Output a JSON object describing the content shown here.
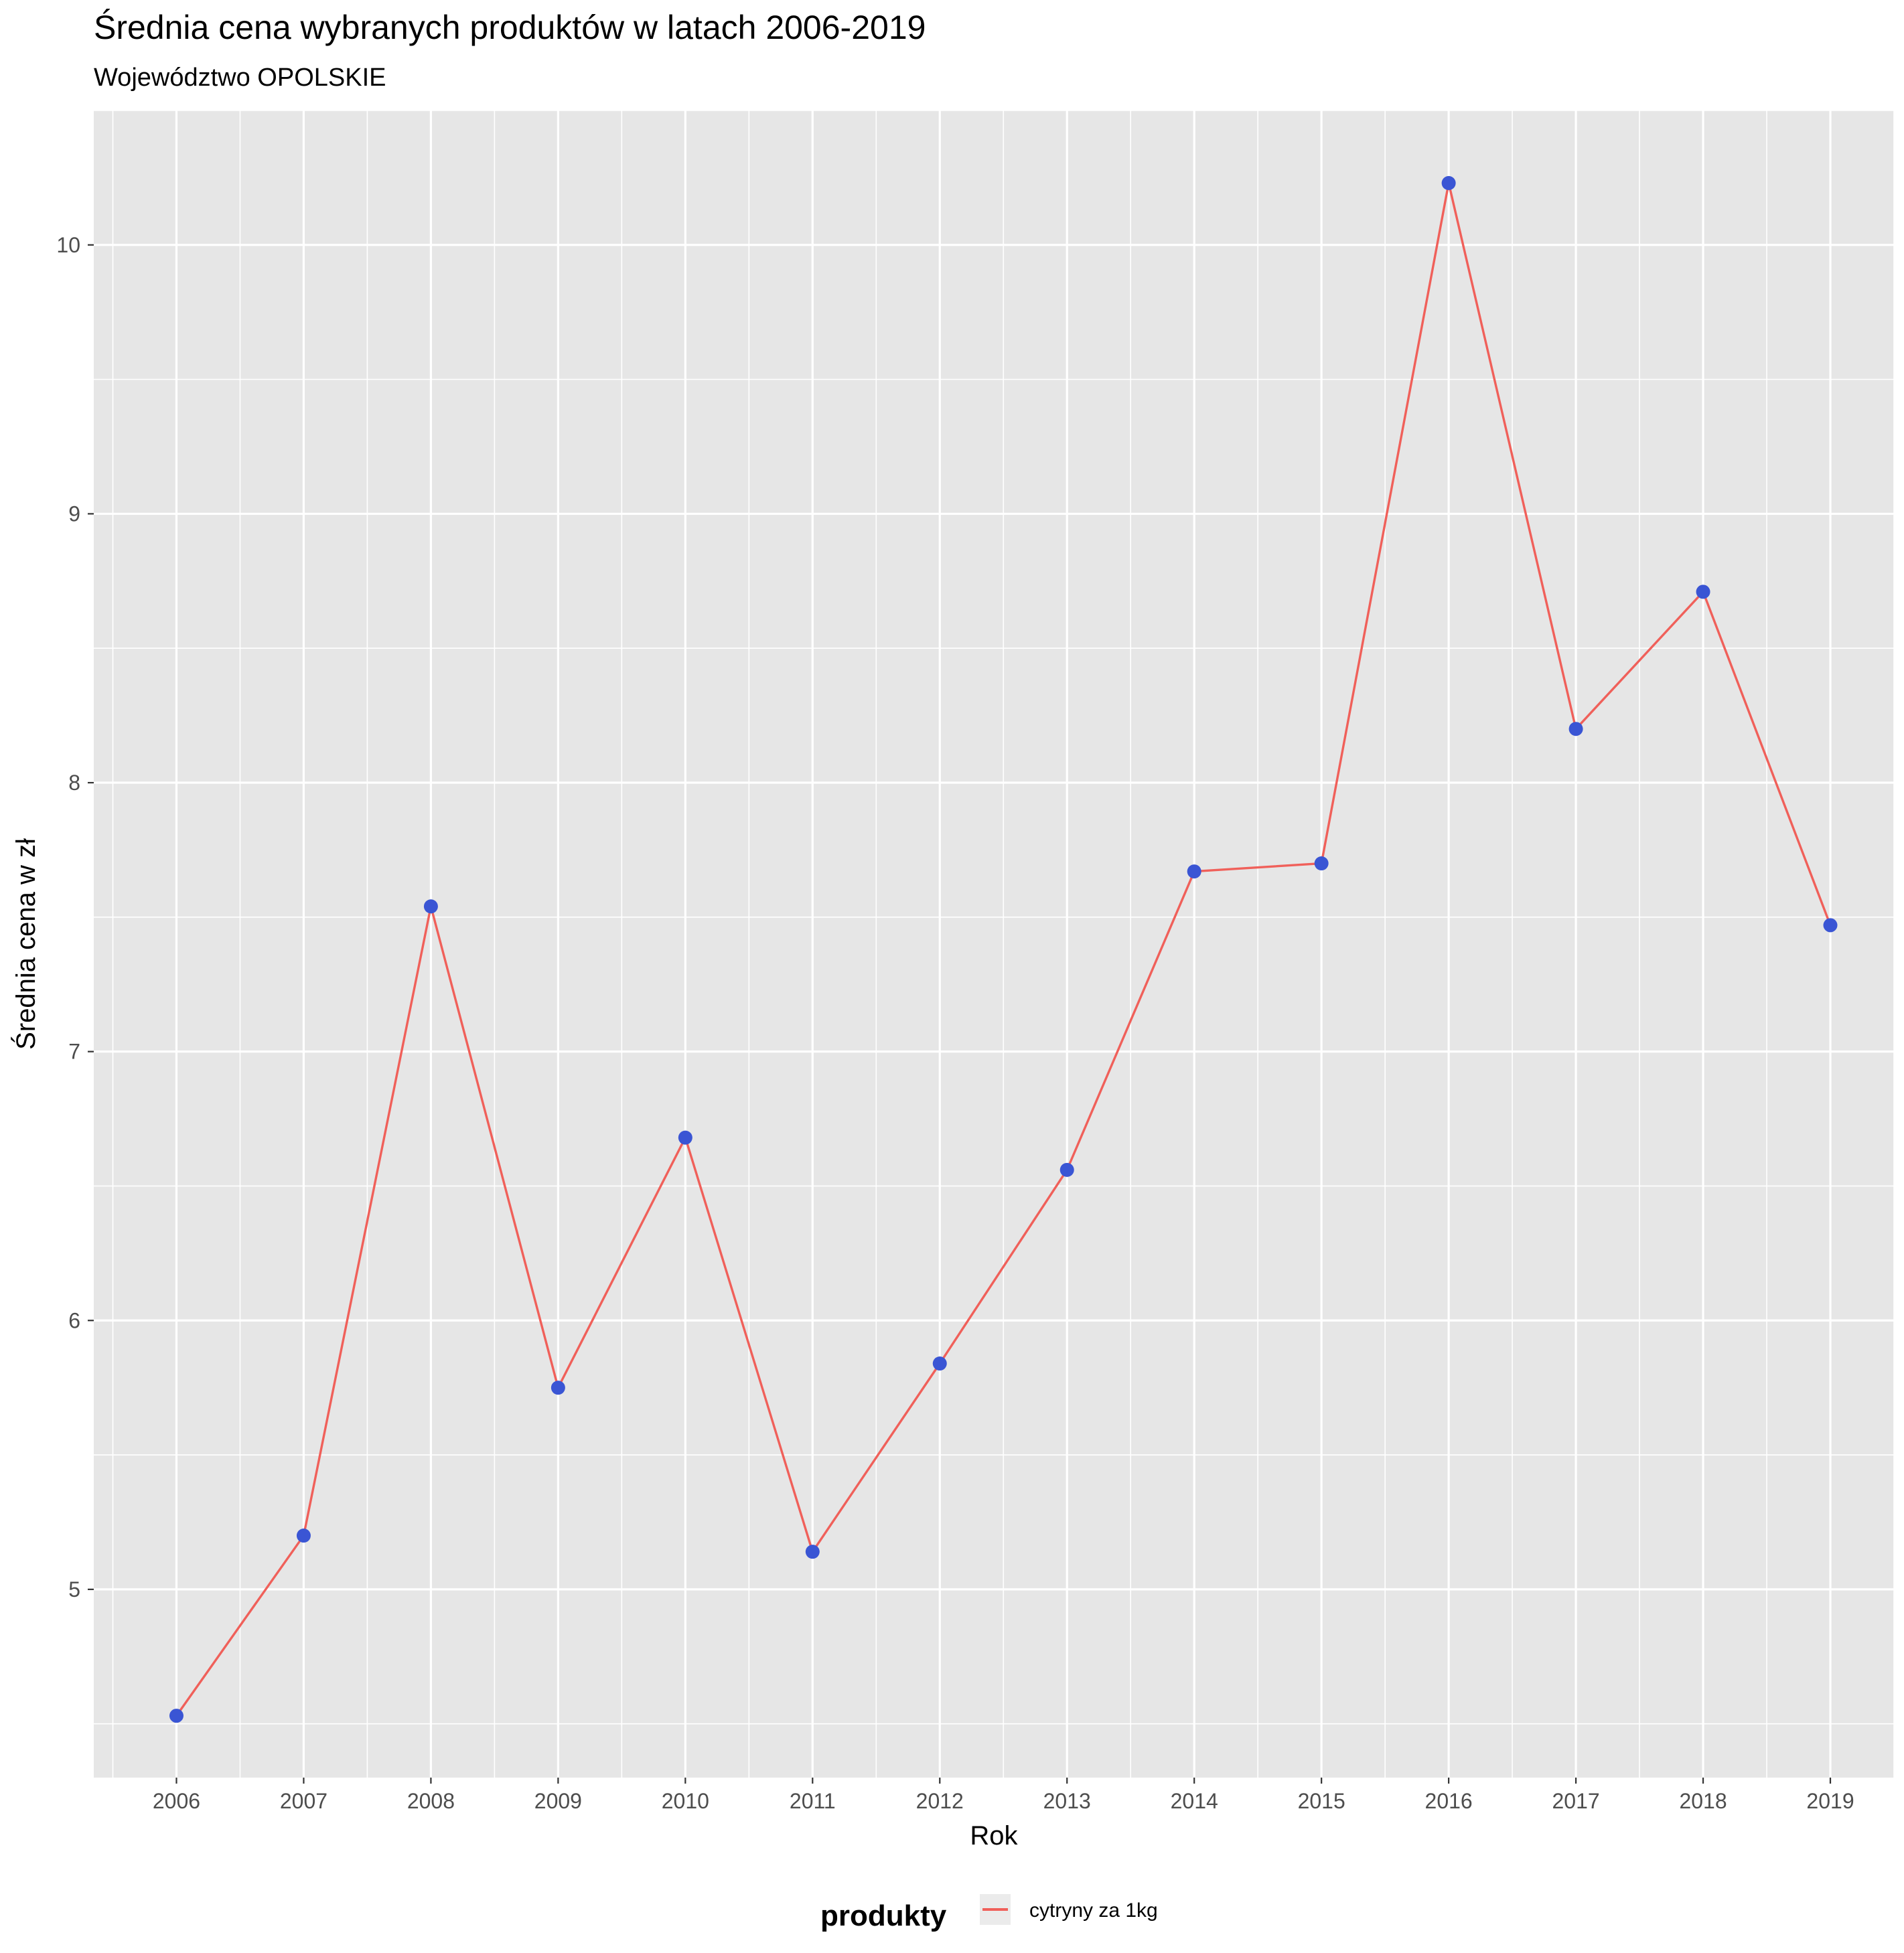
{
  "chart_data": {
    "type": "line",
    "title": "Średnia cena  wybranych produktów w latach 2006-2019",
    "subtitle": "Województwo OPOLSKIE",
    "xlabel": "Rok",
    "ylabel": "Średnia cena w zł",
    "x": [
      2006,
      2007,
      2008,
      2009,
      2010,
      2011,
      2012,
      2013,
      2014,
      2015,
      2016,
      2017,
      2018,
      2019
    ],
    "x_ticks": [
      "2006",
      "2007",
      "2008",
      "2009",
      "2010",
      "2011",
      "2012",
      "2013",
      "2014",
      "2015",
      "2016",
      "2017",
      "2018",
      "2019"
    ],
    "y_ticks": [
      "5",
      "6",
      "7",
      "8",
      "9",
      "10"
    ],
    "xlim": [
      2005.35,
      2019.5
    ],
    "ylim": [
      4.3,
      10.5
    ],
    "grid": true,
    "legend_position": "bottom",
    "legend_title": "produkty",
    "series": [
      {
        "name": "cytryny za 1kg",
        "values": [
          4.53,
          5.2,
          7.54,
          5.75,
          6.68,
          5.14,
          5.84,
          6.56,
          7.67,
          7.7,
          10.23,
          8.2,
          8.71,
          7.47
        ],
        "line_color": "#f0605a",
        "point_color": "#3a55d4"
      }
    ]
  },
  "colors": {
    "panel_background": "#e6e6e6",
    "grid": "#ffffff",
    "legend_key_background": "#ebebeb"
  }
}
